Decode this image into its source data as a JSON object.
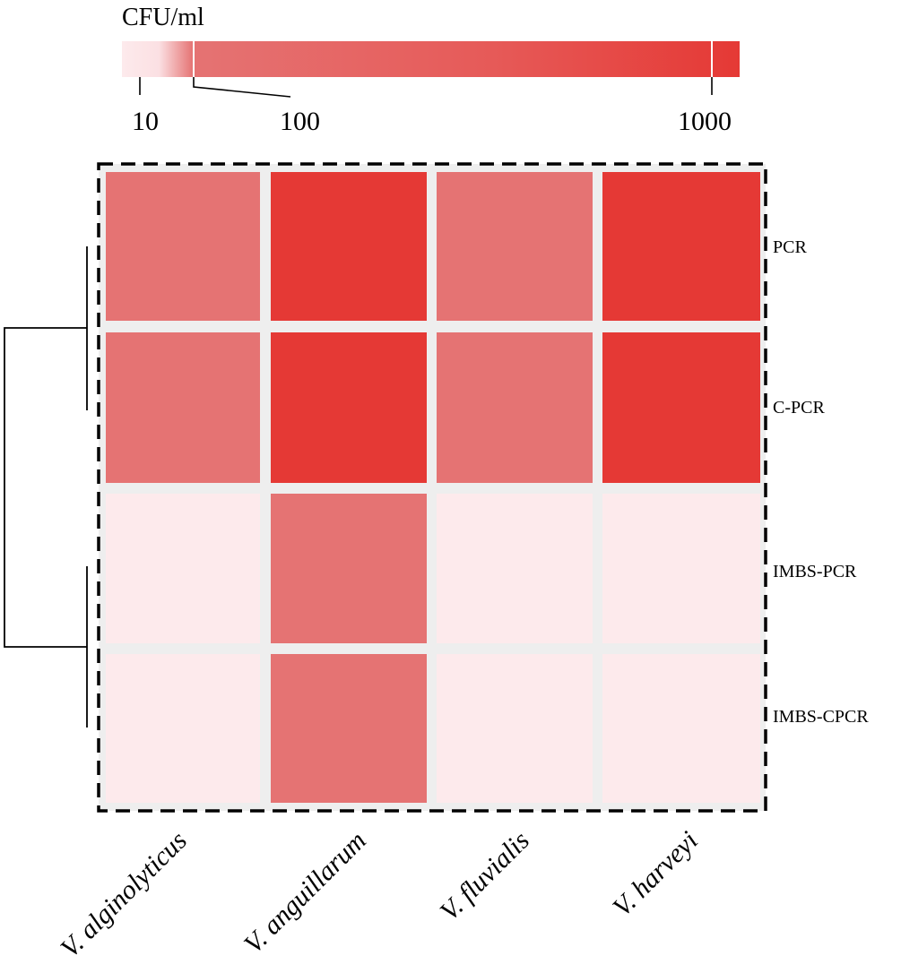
{
  "chart_data": {
    "type": "heatmap",
    "colorbar": {
      "title": "CFU/ml",
      "tick_labels": [
        "10",
        "100",
        "1000"
      ],
      "low_color": "#fdeaec",
      "mid_color": "#e57373",
      "high_color": "#e53935"
    },
    "rows": [
      "PCR",
      "C-PCR",
      "IMBS-PCR",
      "IMBS-CPCR"
    ],
    "columns": [
      "V. alginolyticus",
      "V. anguillarum",
      "V. fluvialis",
      "V. harveyi"
    ],
    "values": [
      [
        100,
        1000,
        100,
        1000
      ],
      [
        100,
        1000,
        100,
        1000
      ],
      [
        10,
        100,
        10,
        10
      ],
      [
        10,
        100,
        10,
        10
      ]
    ],
    "dendrogram": {
      "side": "left",
      "clusters": [
        [
          "PCR",
          "C-PCR"
        ],
        [
          "IMBS-PCR",
          "IMBS-CPCR"
        ]
      ]
    },
    "border": "dashed"
  }
}
